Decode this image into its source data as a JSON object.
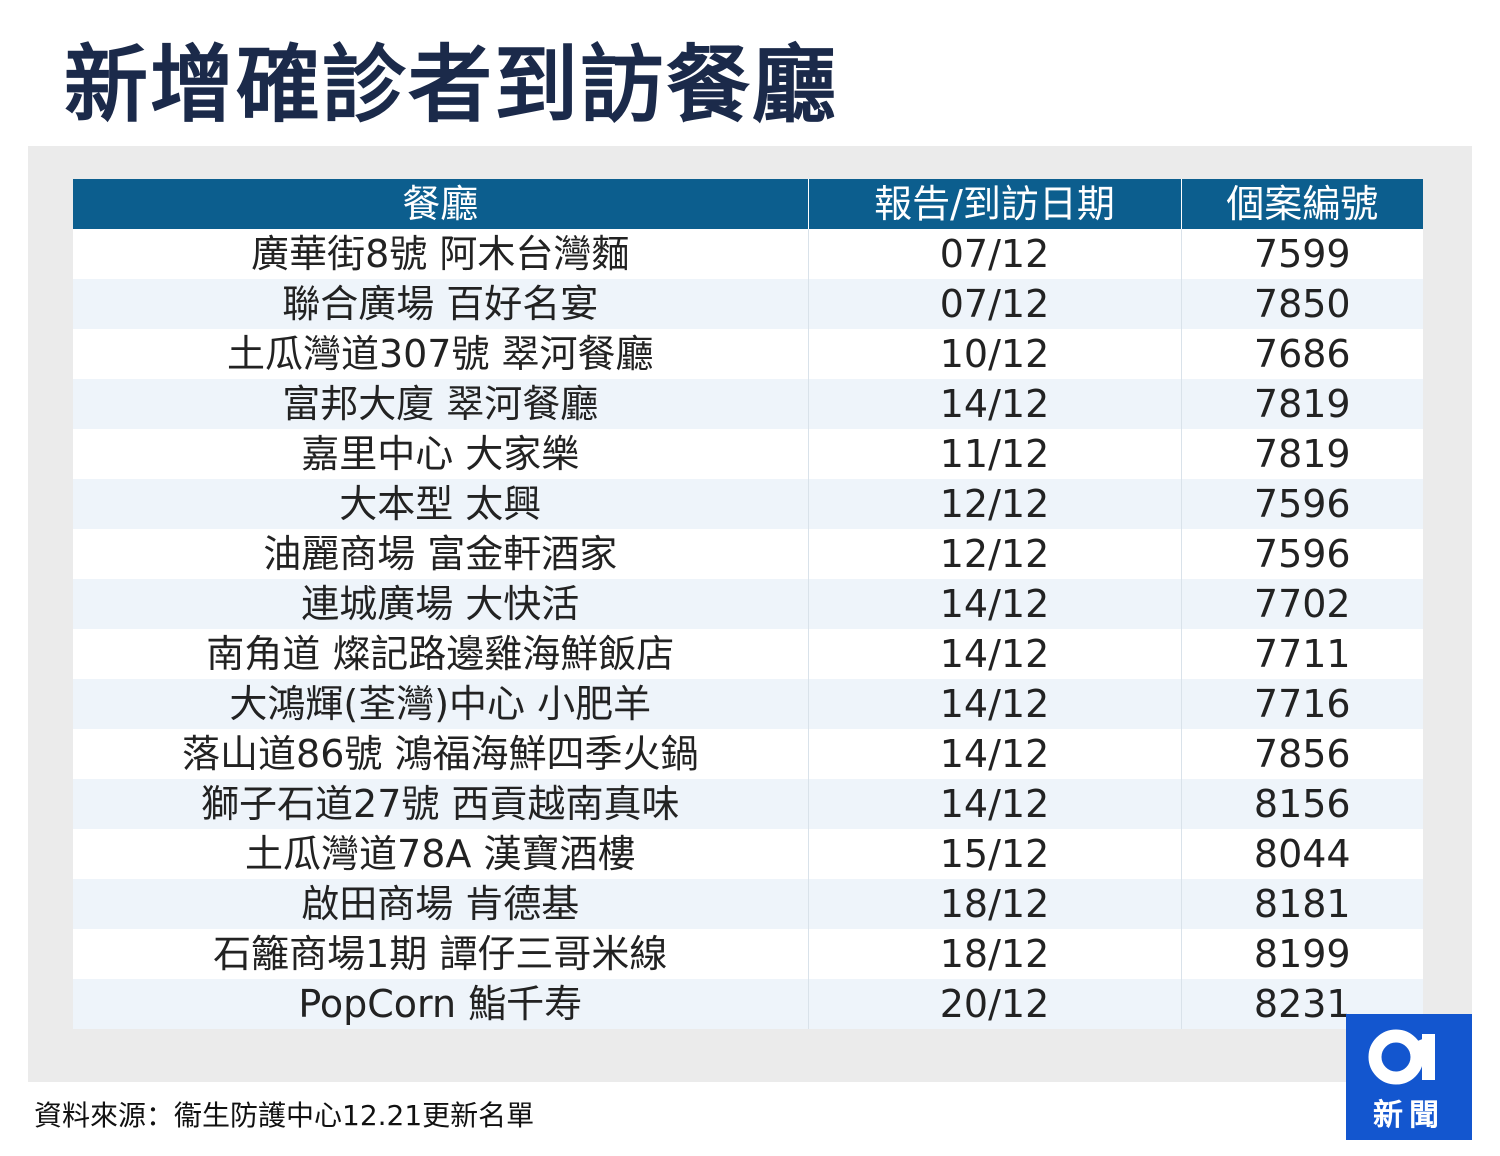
{
  "title": "新增確診者到訪餐廳",
  "table": {
    "headers": [
      "餐廳",
      "報告/到訪日期",
      "個案編號"
    ],
    "rows": [
      [
        "廣華街8號 阿木台灣麵",
        "07/12",
        "7599"
      ],
      [
        "聯合廣場 百好名宴",
        "07/12",
        "7850"
      ],
      [
        "土瓜灣道307號 翠河餐廳",
        "10/12",
        "7686"
      ],
      [
        "富邦大廈 翠河餐廳",
        "14/12",
        "7819"
      ],
      [
        "嘉里中心 大家樂",
        "11/12",
        "7819"
      ],
      [
        "大本型 太興",
        "12/12",
        "7596"
      ],
      [
        "油麗商場 富金軒酒家",
        "12/12",
        "7596"
      ],
      [
        "連城廣場 大快活",
        "14/12",
        "7702"
      ],
      [
        "南角道 燦記路邊雞海鮮飯店",
        "14/12",
        "7711"
      ],
      [
        "大鴻輝(荃灣)中心 小肥羊",
        "14/12",
        "7716"
      ],
      [
        "落山道86號 鴻福海鮮四季火鍋",
        "14/12",
        "7856"
      ],
      [
        "獅子石道27號 西貢越南真味",
        "14/12",
        "8156"
      ],
      [
        "土瓜灣道78A 漢寶酒樓",
        "15/12",
        "8044"
      ],
      [
        "啟田商場 肯德基",
        "18/12",
        "8181"
      ],
      [
        "石籬商場1期 譚仔三哥米線",
        "18/12",
        "8199"
      ],
      [
        "PopCorn 鮨千寿",
        "20/12",
        "8231"
      ]
    ]
  },
  "source": "資料來源：衞生防護中心12.21更新名單",
  "logo": {
    "text": "新聞",
    "icon": "01-logo-icon"
  },
  "colors": {
    "title": "#1b2a4a",
    "header_bg": "#0c5e8e",
    "stripe": "#eef4fa",
    "panel_bg": "#ebebeb",
    "logo_bg": "#1356cf"
  }
}
